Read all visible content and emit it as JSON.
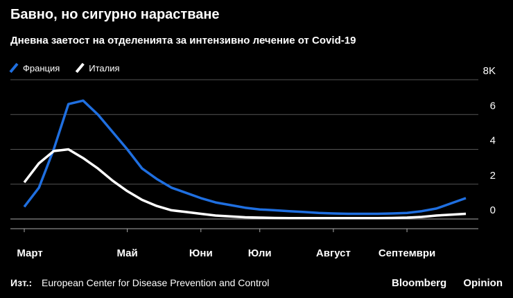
{
  "chart_data": {
    "type": "line",
    "title": "Бавно, но сигурно нарастване",
    "subtitle": "Дневна заетост на отделенията за интензивно лечение от Covid-19",
    "categories": [
      "Март",
      null,
      null,
      null,
      null,
      null,
      null,
      "Май",
      null,
      null,
      null,
      null,
      "Юни",
      null,
      null,
      null,
      "Юли",
      null,
      null,
      null,
      null,
      "Август",
      null,
      null,
      null,
      null,
      "Септември",
      null,
      null,
      null,
      null
    ],
    "series": [
      {
        "name": "Франция",
        "color": "#1f6fe0",
        "values": [
          0.7,
          1.8,
          4.0,
          6.6,
          6.8,
          6.0,
          5.0,
          4.0,
          2.9,
          2.3,
          1.8,
          1.5,
          1.2,
          0.95,
          0.8,
          0.65,
          0.55,
          0.5,
          0.45,
          0.4,
          0.35,
          0.32,
          0.3,
          0.3,
          0.3,
          0.32,
          0.35,
          0.45,
          0.6,
          0.9,
          1.2
        ]
      },
      {
        "name": "Италия",
        "color": "#ffffff",
        "values": [
          2.1,
          3.2,
          3.9,
          4.0,
          3.5,
          2.9,
          2.2,
          1.6,
          1.1,
          0.75,
          0.5,
          0.4,
          0.3,
          0.2,
          0.15,
          0.1,
          0.08,
          0.06,
          0.05,
          0.05,
          0.05,
          0.05,
          0.05,
          0.05,
          0.05,
          0.06,
          0.08,
          0.12,
          0.2,
          0.25,
          0.3
        ]
      }
    ],
    "ylim": [
      0,
      8
    ],
    "yticks": [
      0,
      2,
      4,
      6,
      {
        "value": 8,
        "label": "8K"
      }
    ],
    "grid": true,
    "legend": "top-left",
    "source_label": "Изт.:",
    "source": "European Center for Disease Prevention and Control",
    "brand": "Bloomberg",
    "brand2": "Opinion"
  }
}
